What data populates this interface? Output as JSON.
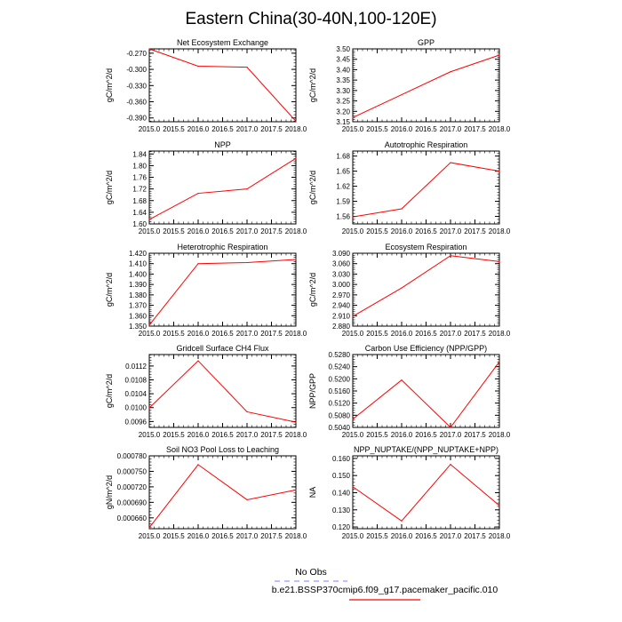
{
  "page_title": "Eastern China(30-40N,100-120E)",
  "legend": {
    "obs_label": "No Obs",
    "obs_color": "#9999ff",
    "model_label": "b.e21.BSSP370cmip6.f09_g17.pacemaker_pacific.010",
    "model_color": "#ff0000"
  },
  "chart_data": [
    {
      "type": "line",
      "title": "Net Ecosystem Exchange",
      "ylabel": "gC/m^2/d",
      "x": [
        2015,
        2016,
        2017,
        2018
      ],
      "xlim": [
        2015,
        2018
      ],
      "xticks": [
        "2015.0",
        "2015.5",
        "2016.0",
        "2016.5",
        "2017.0",
        "2017.5",
        "2018.0"
      ],
      "ylim": [
        -0.397,
        -0.262
      ],
      "yticks": [
        "-0.270",
        "-0.300",
        "-0.330",
        "-0.360",
        "-0.390"
      ],
      "series": [
        {
          "values": [
            -0.262,
            -0.294,
            -0.296,
            -0.396
          ]
        }
      ]
    },
    {
      "type": "line",
      "title": "GPP",
      "ylabel": "gC/m^2/d",
      "x": [
        2015,
        2016,
        2017,
        2018
      ],
      "xlim": [
        2015,
        2018
      ],
      "xticks": [
        "2015.0",
        "2015.5",
        "2016.0",
        "2016.5",
        "2017.0",
        "2017.5",
        "2018.0"
      ],
      "ylim": [
        3.15,
        3.5
      ],
      "yticks": [
        "3.50",
        "3.45",
        "3.40",
        "3.35",
        "3.30",
        "3.25",
        "3.20",
        "3.15"
      ],
      "series": [
        {
          "values": [
            3.17,
            3.28,
            3.39,
            3.47
          ]
        }
      ]
    },
    {
      "type": "line",
      "title": "NPP",
      "ylabel": "gC/m^2/d",
      "x": [
        2015,
        2016,
        2017,
        2018
      ],
      "xlim": [
        2015,
        2018
      ],
      "xticks": [
        "2015.0",
        "2015.5",
        "2016.0",
        "2016.5",
        "2017.0",
        "2017.5",
        "2018.0"
      ],
      "ylim": [
        1.6,
        1.85
      ],
      "yticks": [
        "1.84",
        "1.80",
        "1.76",
        "1.72",
        "1.68",
        "1.64",
        "1.60"
      ],
      "series": [
        {
          "values": [
            1.615,
            1.705,
            1.72,
            1.825
          ]
        }
      ]
    },
    {
      "type": "line",
      "title": "Autotrophic Respiration",
      "ylabel": "gC/m^2/d",
      "x": [
        2015,
        2016,
        2017,
        2018
      ],
      "xlim": [
        2015,
        2018
      ],
      "xticks": [
        "2015.0",
        "2015.5",
        "2016.0",
        "2016.5",
        "2017.0",
        "2017.5",
        "2018.0"
      ],
      "ylim": [
        1.545,
        1.69
      ],
      "yticks": [
        "1.68",
        "1.65",
        "1.62",
        "1.59",
        "1.56"
      ],
      "series": [
        {
          "values": [
            1.559,
            1.575,
            1.667,
            1.65
          ]
        }
      ]
    },
    {
      "type": "line",
      "title": "Heterotrophic Respiration",
      "ylabel": "gC/m^2/d",
      "x": [
        2015,
        2016,
        2017,
        2018
      ],
      "xlim": [
        2015,
        2018
      ],
      "xticks": [
        "2015.0",
        "2015.5",
        "2016.0",
        "2016.5",
        "2017.0",
        "2017.5",
        "2018.0"
      ],
      "ylim": [
        1.35,
        1.42
      ],
      "yticks": [
        "1.420",
        "1.410",
        "1.400",
        "1.390",
        "1.380",
        "1.370",
        "1.360",
        "1.350"
      ],
      "series": [
        {
          "values": [
            1.351,
            1.41,
            1.411,
            1.414
          ]
        }
      ]
    },
    {
      "type": "line",
      "title": "Ecosystem Respiration",
      "ylabel": "gC/m^2/d",
      "x": [
        2015,
        2016,
        2017,
        2018
      ],
      "xlim": [
        2015,
        2018
      ],
      "xticks": [
        "2015.0",
        "2015.5",
        "2016.0",
        "2016.5",
        "2017.0",
        "2017.5",
        "2018.0"
      ],
      "ylim": [
        2.88,
        3.09
      ],
      "yticks": [
        "3.090",
        "3.060",
        "3.030",
        "3.000",
        "2.970",
        "2.940",
        "2.910",
        "2.880"
      ],
      "series": [
        {
          "values": [
            2.908,
            2.99,
            3.083,
            3.066
          ]
        }
      ]
    },
    {
      "type": "line",
      "title": "Gridcell Surface CH4 Flux",
      "ylabel": "gC/m^2/d",
      "x": [
        2015,
        2016,
        2017,
        2018
      ],
      "xlim": [
        2015,
        2018
      ],
      "xticks": [
        "2015.0",
        "2015.5",
        "2016.0",
        "2016.5",
        "2017.0",
        "2017.5",
        "2018.0"
      ],
      "ylim": [
        0.00943,
        0.01153
      ],
      "yticks": [
        "0.0112",
        "0.0108",
        "0.0104",
        "0.0100",
        "0.0096"
      ],
      "series": [
        {
          "values": [
            0.00999,
            0.01135,
            0.00988,
            0.00958
          ]
        }
      ]
    },
    {
      "type": "line",
      "title": "Carbon Use Efficiency (NPP/GPP)",
      "ylabel": "NPP/GPP",
      "x": [
        2015,
        2016,
        2017,
        2018
      ],
      "xlim": [
        2015,
        2018
      ],
      "xticks": [
        "2015.0",
        "2015.5",
        "2016.0",
        "2016.5",
        "2017.0",
        "2017.5",
        "2018.0"
      ],
      "ylim": [
        0.504,
        0.528
      ],
      "yticks": [
        "0.5280",
        "0.5240",
        "0.5200",
        "0.5160",
        "0.5120",
        "0.5080",
        "0.5040"
      ],
      "series": [
        {
          "values": [
            0.5067,
            0.5196,
            0.504,
            0.5256
          ]
        }
      ]
    },
    {
      "type": "line",
      "title": "Soil NO3 Pool Loss to Leaching",
      "ylabel": "gN/m^2/d",
      "x": [
        2015,
        2016,
        2017,
        2018
      ],
      "xlim": [
        2015,
        2018
      ],
      "xticks": [
        "2015.0",
        "2015.5",
        "2016.0",
        "2016.5",
        "2017.0",
        "2017.5",
        "2018.0"
      ],
      "ylim": [
        0.000639,
        0.00078
      ],
      "yticks": [
        "0.000780",
        "0.000750",
        "0.000720",
        "0.000690",
        "0.000660"
      ],
      "series": [
        {
          "values": [
            0.000641,
            0.000763,
            0.000695,
            0.000714
          ]
        }
      ]
    },
    {
      "type": "line",
      "title": "NPP_NUPTAKE/(NPP_NUPTAKE+NPP)",
      "ylabel": "NA",
      "x": [
        2015,
        2016,
        2017,
        2018
      ],
      "xlim": [
        2015,
        2018
      ],
      "xticks": [
        "2015.0",
        "2015.5",
        "2016.0",
        "2016.5",
        "2017.0",
        "2017.5",
        "2018.0"
      ],
      "ylim": [
        0.119,
        0.1615
      ],
      "yticks": [
        "0.160",
        "0.150",
        "0.140",
        "0.130",
        "0.120"
      ],
      "series": [
        {
          "values": [
            0.1435,
            0.1235,
            0.1565,
            0.1325
          ]
        }
      ]
    }
  ]
}
